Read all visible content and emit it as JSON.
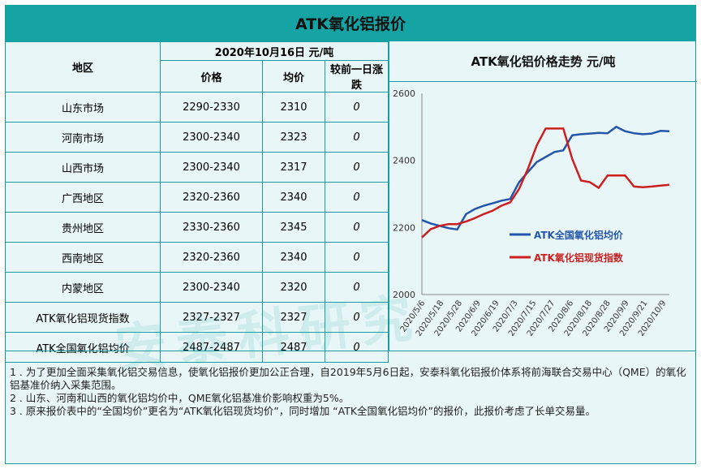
{
  "title": "ATK氧化铝报价",
  "table": {
    "region_header": "地区",
    "date_header": "2020年10月16日  元/吨",
    "col_price": "价格",
    "col_avg": "均价",
    "col_change": "较前一日涨跌",
    "rows": [
      {
        "region": "山东市场",
        "price": "2290-2330",
        "avg": "2310",
        "change": "0"
      },
      {
        "region": "河南市场",
        "price": "2300-2340",
        "avg": "2323",
        "change": "0"
      },
      {
        "region": "山西市场",
        "price": "2300-2340",
        "avg": "2317",
        "change": "0"
      },
      {
        "region": "广西地区",
        "price": "2320-2360",
        "avg": "2340",
        "change": "0"
      },
      {
        "region": "贵州地区",
        "price": "2330-2360",
        "avg": "2345",
        "change": "0"
      },
      {
        "region": "西南地区",
        "price": "2320-2360",
        "avg": "2340",
        "change": "0"
      },
      {
        "region": "内蒙地区",
        "price": "2300-2340",
        "avg": "2320",
        "change": "0"
      },
      {
        "region": "ATK氧化铝现货指数",
        "price": "2327-2327",
        "avg": "2327",
        "change": "0"
      },
      {
        "region": "ATK全国氧化铝均价",
        "price": "2487-2487",
        "avg": "2487",
        "change": "0"
      }
    ]
  },
  "chart_data": {
    "type": "line",
    "title": "ATK氧化铝价格走势  元/吨",
    "ylim": [
      2000,
      2600
    ],
    "yticks": [
      "2600",
      "2400",
      "2200",
      "2000"
    ],
    "x_tick_labels": [
      "2020/5/6",
      "2020/5/18",
      "2020/5/28",
      "2020/6/9",
      "2020/6/19",
      "2020/7/3",
      "2020/7/15",
      "2020/7/27",
      "2020/8/6",
      "2020/8/18",
      "2020/8/28",
      "2020/9/9",
      "2020/9/21",
      "2020/10/9"
    ],
    "legend_position": "right",
    "series": [
      {
        "name": "ATK全国氧化铝均价",
        "color": "#2356a8",
        "values": [
          2222,
          2212,
          2205,
          2198,
          2194,
          2240,
          2255,
          2265,
          2272,
          2280,
          2285,
          2335,
          2365,
          2395,
          2410,
          2425,
          2430,
          2475,
          2478,
          2480,
          2482,
          2481,
          2500,
          2487,
          2481,
          2478,
          2480,
          2488,
          2487
        ]
      },
      {
        "name": "ATK氧化铝现货指数",
        "color": "#cc1f1f",
        "values": [
          2170,
          2195,
          2205,
          2210,
          2210,
          2218,
          2228,
          2240,
          2250,
          2265,
          2275,
          2315,
          2375,
          2445,
          2495,
          2495,
          2495,
          2405,
          2340,
          2335,
          2318,
          2355,
          2355,
          2355,
          2322,
          2320,
          2322,
          2325,
          2327
        ]
      }
    ]
  },
  "watermark": "安泰科研究",
  "notes": [
    "1 . 为了更加全面采集氧化铝交易信息，使氧化铝报价更加公正合理，自2019年5月6日起，安泰科氧化铝报价体系将前海联合交易中心（QME）的氧化铝基准价纳入采集范围。",
    "2 . 山东、河南和山西的氧化铝均价中，QME氧化铝基准价影响权重为5%。",
    "3 . 原来报价表中的“全国均价”更名为“ATK氧化铝现货均价”，同时增加 “ATK全国氧化铝均价”的报价，此报价考虑了长单交易量。"
  ]
}
